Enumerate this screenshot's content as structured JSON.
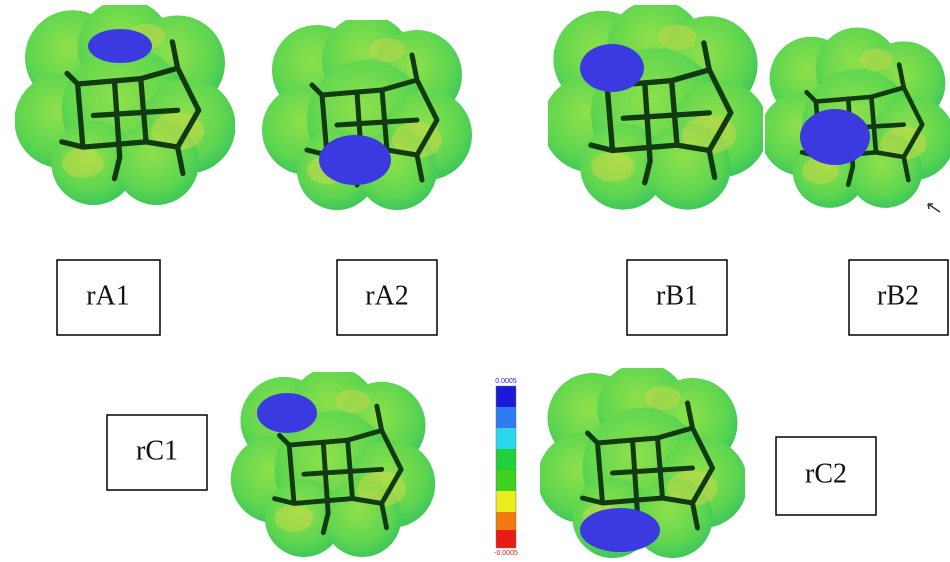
{
  "panels": [
    {
      "label": "rA1"
    },
    {
      "label": "rA2"
    },
    {
      "label": "rB1"
    },
    {
      "label": "rB2"
    },
    {
      "label": "rC1"
    },
    {
      "label": "rC2"
    }
  ],
  "colorbar": {
    "max_label": "0.0005",
    "min_label": "-0.0005"
  }
}
